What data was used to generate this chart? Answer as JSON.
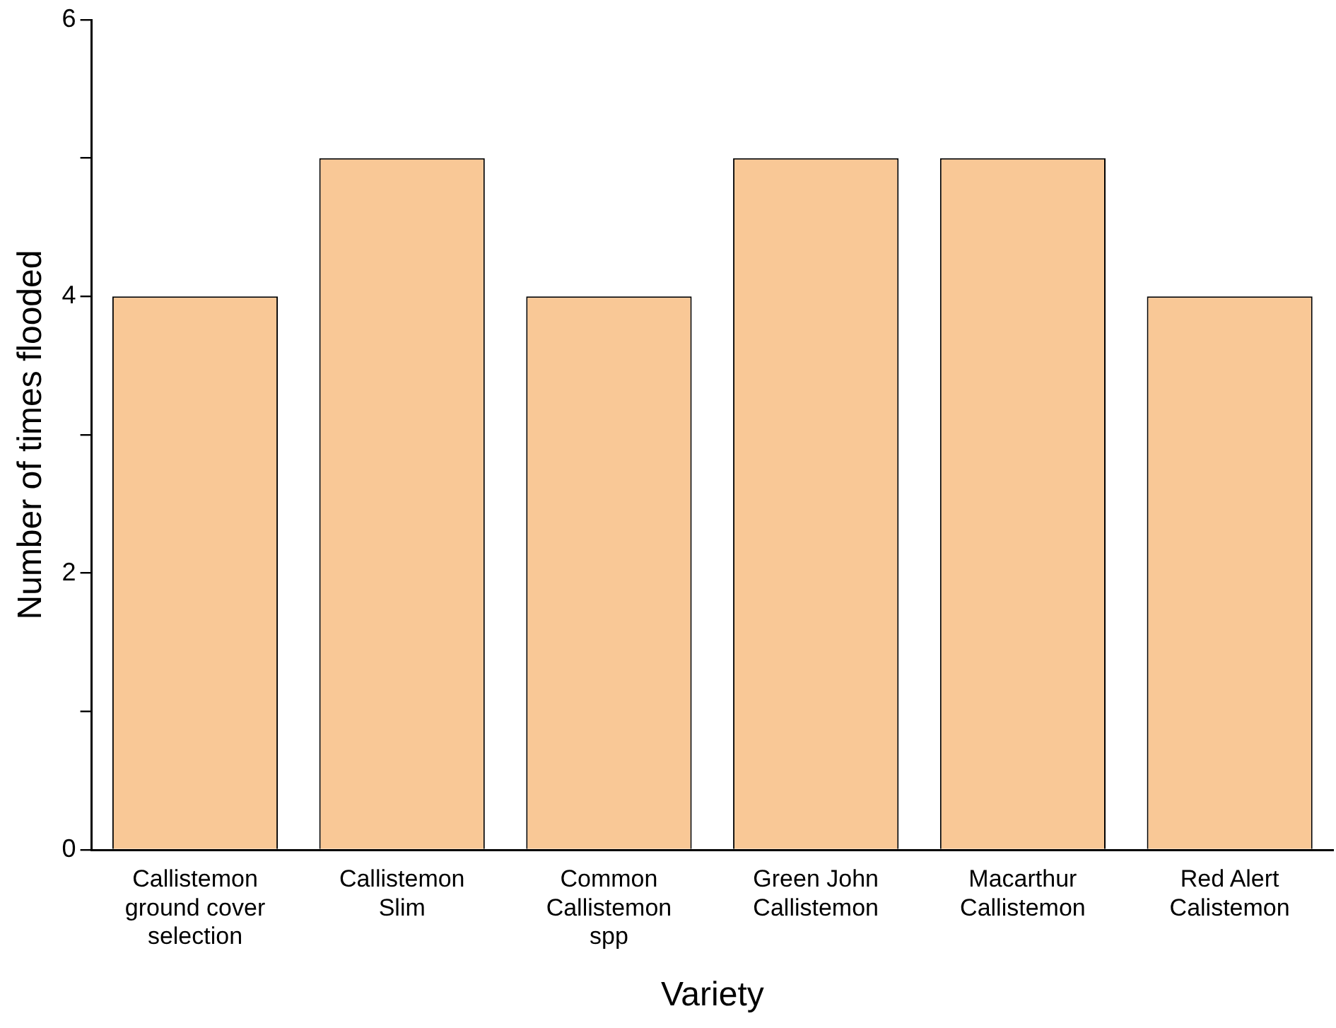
{
  "chart_data": {
    "type": "bar",
    "xlabel": "Variety",
    "ylabel": "Number of times flooded",
    "categories": [
      "Callistemon ground cover selection",
      "Callistemon Slim",
      "Common Callistemon spp",
      "Green John Callistemon",
      "Macarthur Callistemon",
      "Red Alert Calistemon"
    ],
    "values": [
      4,
      5,
      4,
      5,
      5,
      4
    ],
    "color": "#f9c896",
    "ylim": [
      0,
      6
    ],
    "yticks": [
      0,
      {
        "value": 1,
        "label": null
      },
      2,
      {
        "value": 3,
        "label": null
      },
      4,
      {
        "value": 5,
        "label": null
      },
      6
    ],
    "grid": false
  }
}
